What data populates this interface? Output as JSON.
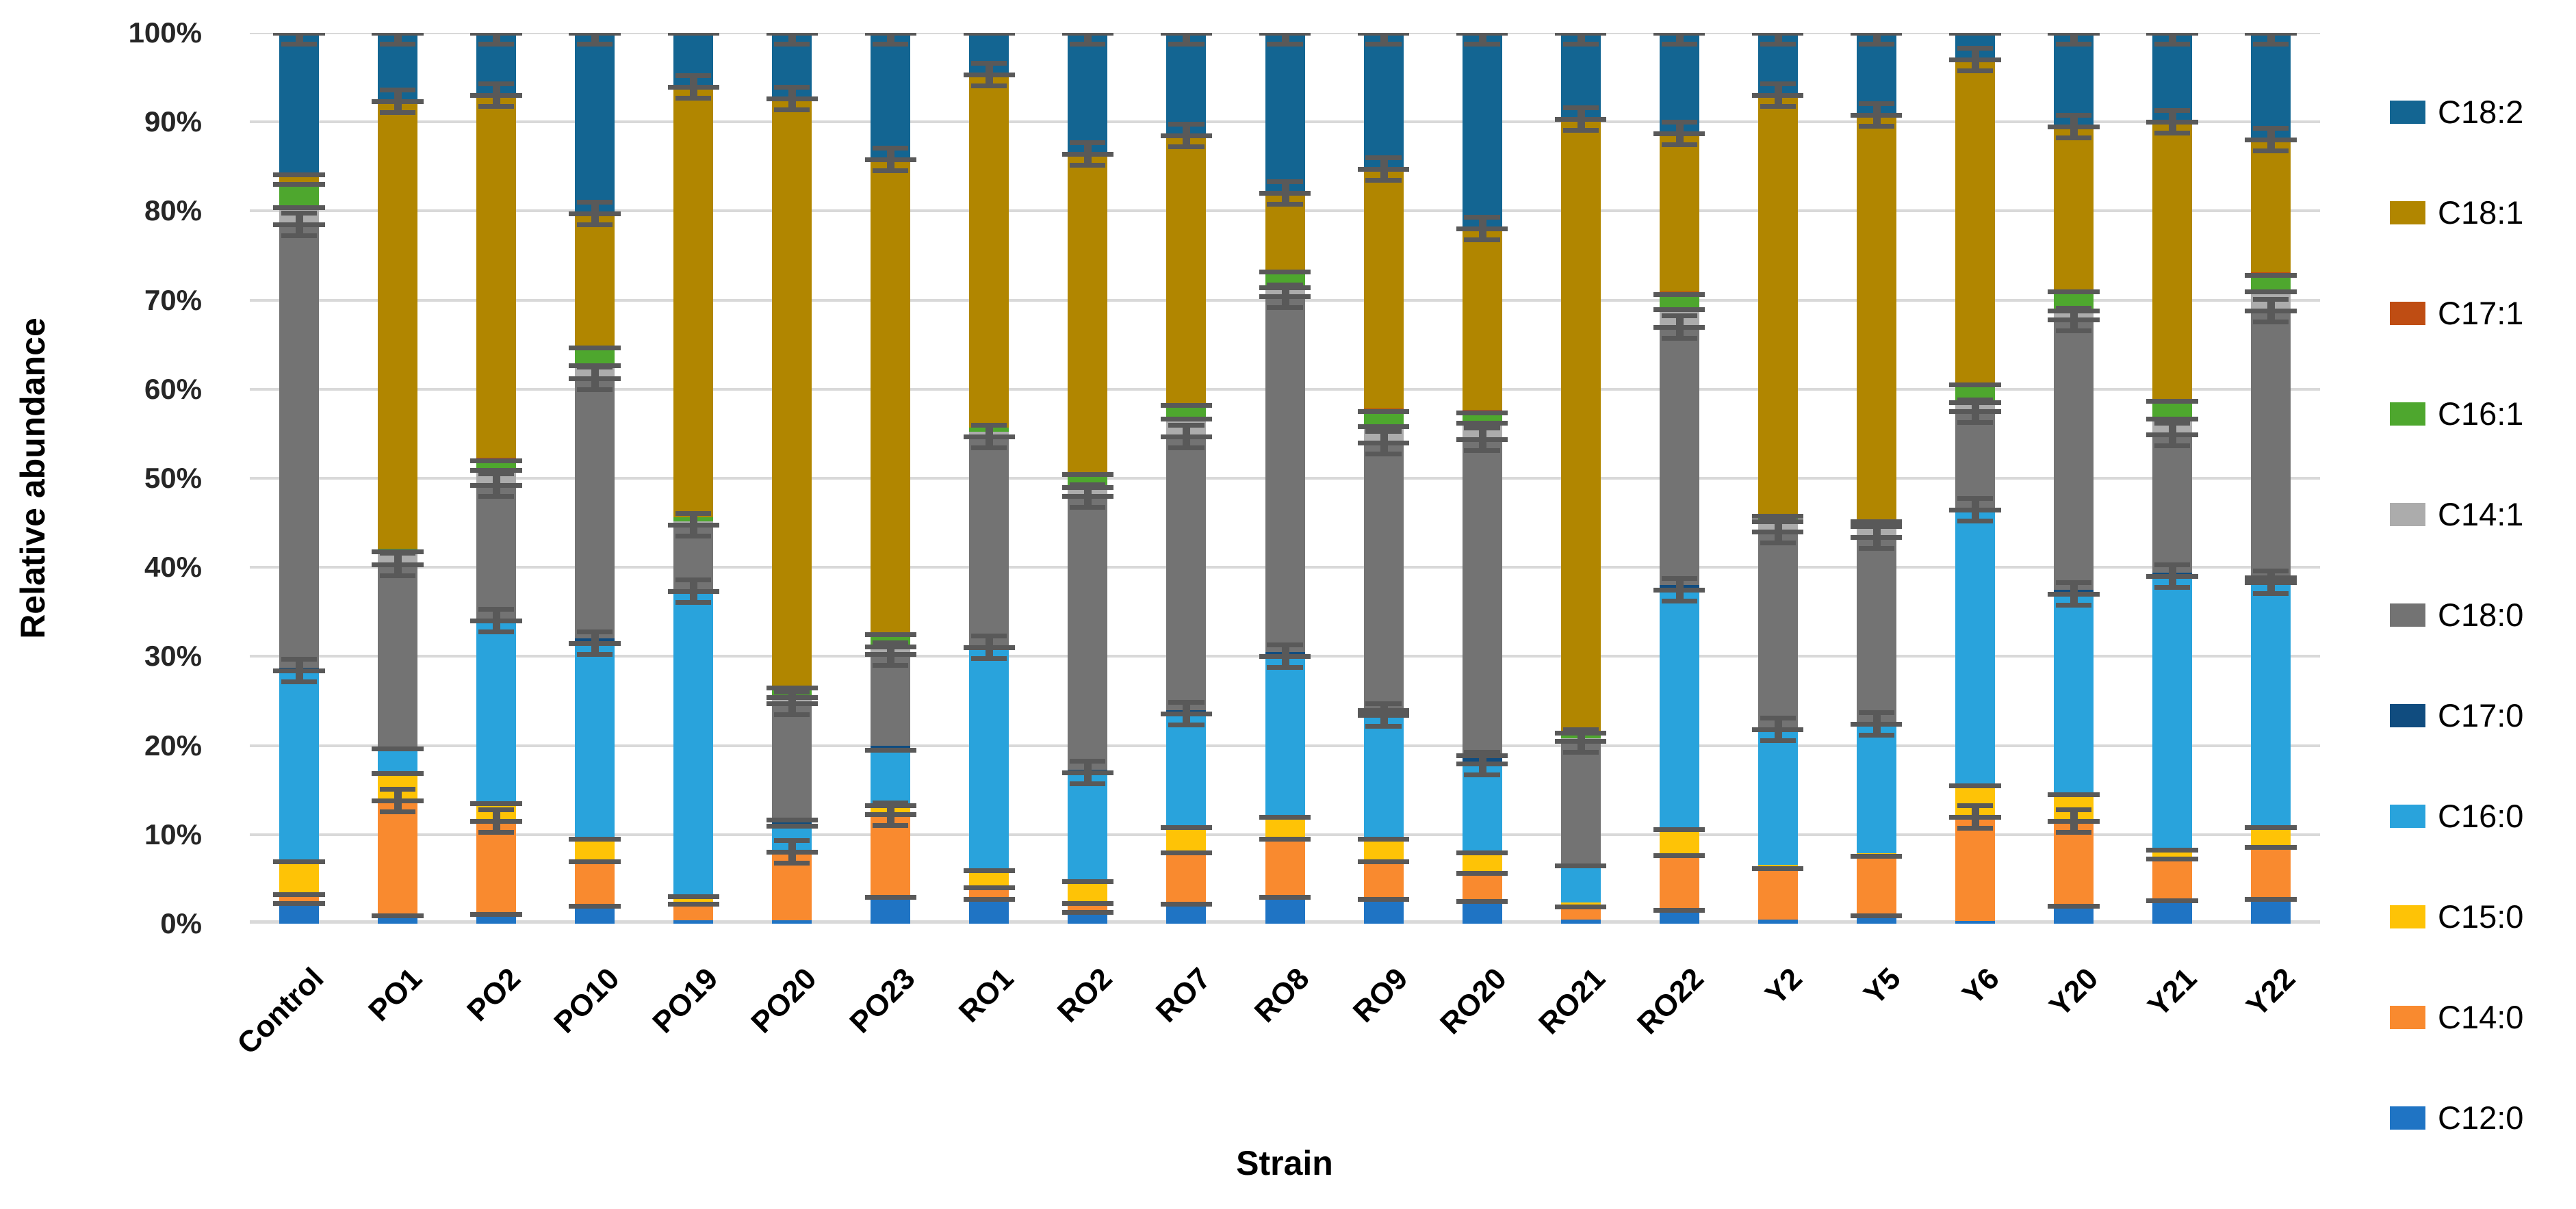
{
  "chart_data": {
    "type": "bar",
    "stacked": true,
    "title": "",
    "xlabel": "Strain",
    "ylabel": "Relative abundance",
    "ylim": [
      0,
      100
    ],
    "grid": true,
    "legend_position": "right",
    "y_ticks": [
      "0%",
      "10%",
      "20%",
      "30%",
      "40%",
      "50%",
      "60%",
      "70%",
      "80%",
      "90%",
      "100%"
    ],
    "categories": [
      "Control",
      "PO1",
      "PO2",
      "PO10",
      "PO19",
      "PO20",
      "PO23",
      "RO1",
      "RO2",
      "RO7",
      "RO8",
      "RO9",
      "RO20",
      "RO21",
      "RO22",
      "Y2",
      "Y5",
      "Y6",
      "Y20",
      "Y21",
      "Y22"
    ],
    "series": [
      {
        "name": "C12:0",
        "color": "#1F74C4",
        "values": [
          2.3,
          0.9,
          1.1,
          2.0,
          0.4,
          0.4,
          3.0,
          2.8,
          1.3,
          2.2,
          3.0,
          2.8,
          2.5,
          0.5,
          1.5,
          0.5,
          0.9,
          0.3,
          2.0,
          2.6,
          2.8
        ]
      },
      {
        "name": "C14:0",
        "color": "#F98A2F",
        "values": [
          1.0,
          12.9,
          10.4,
          5.0,
          1.8,
          7.7,
          9.3,
          1.3,
          1.0,
          5.8,
          6.5,
          4.2,
          3.2,
          1.4,
          6.2,
          5.7,
          6.7,
          11.7,
          9.5,
          4.7,
          5.8
        ]
      },
      {
        "name": "C15:0",
        "color": "#FEC306",
        "values": [
          3.7,
          3.1,
          2.0,
          2.5,
          0.9,
          0.2,
          1.0,
          1.9,
          2.5,
          2.8,
          2.5,
          2.5,
          2.3,
          0.5,
          2.9,
          0.4,
          0.3,
          3.5,
          3.0,
          1.0,
          2.2
        ]
      },
      {
        "name": "C16:0",
        "color": "#29A3DC",
        "values": [
          21.4,
          2.8,
          20.5,
          22.0,
          34.2,
          2.7,
          6.2,
          25.0,
          12.2,
          12.8,
          18.0,
          13.9,
          10.0,
          4.1,
          26.9,
          15.2,
          14.5,
          31.0,
          22.5,
          30.7,
          27.5
        ]
      },
      {
        "name": "C17:0",
        "color": "#104C7F",
        "values": [
          0.3,
          0.0,
          0.0,
          0.5,
          0.0,
          0.7,
          0.5,
          0.0,
          0.3,
          0.4,
          0.5,
          0.6,
          0.9,
          0.0,
          0.5,
          0.0,
          0.0,
          0.0,
          0.5,
          0.4,
          0.6
        ]
      },
      {
        "name": "C18:0",
        "color": "#737373",
        "values": [
          49.8,
          20.6,
          15.2,
          29.2,
          7.5,
          13.0,
          10.3,
          23.7,
          30.7,
          30.7,
          39.9,
          30.0,
          35.5,
          14.0,
          29.0,
          22.2,
          21.0,
          11.0,
          30.3,
          15.5,
          29.9
        ]
      },
      {
        "name": "C14:1",
        "color": "#ACACAC",
        "values": [
          1.9,
          1.5,
          1.7,
          1.5,
          0.4,
          0.7,
          0.8,
          0.5,
          1.0,
          2.0,
          1.0,
          1.8,
          1.8,
          0.3,
          2.0,
          1.2,
          1.2,
          1.0,
          1.0,
          1.8,
          2.2
        ]
      },
      {
        "name": "C16:1",
        "color": "#4EA72E",
        "values": [
          2.6,
          0.3,
          1.1,
          2.0,
          0.4,
          1.1,
          1.4,
          0.5,
          1.5,
          1.5,
          1.8,
          1.7,
          1.2,
          0.6,
          1.7,
          0.6,
          0.6,
          2.0,
          2.2,
          2.0,
          1.8
        ]
      },
      {
        "name": "C17:1",
        "color": "#BF4D13",
        "values": [
          0.0,
          0.0,
          0.3,
          0.0,
          0.0,
          0.0,
          0.0,
          0.0,
          0.0,
          0.0,
          0.0,
          0.3,
          0.3,
          0.0,
          0.3,
          0.0,
          0.0,
          0.0,
          0.2,
          0.2,
          0.3
        ]
      },
      {
        "name": "C18:1",
        "color": "#B18600",
        "values": [
          1.1,
          50.2,
          40.7,
          15.0,
          48.3,
          66.1,
          53.3,
          39.6,
          35.9,
          30.3,
          8.8,
          26.9,
          20.3,
          68.9,
          17.7,
          47.2,
          45.6,
          36.5,
          18.3,
          31.1,
          14.9
        ]
      },
      {
        "name": "C18:2",
        "color": "#136592",
        "values": [
          15.9,
          7.7,
          7.0,
          20.3,
          6.1,
          7.4,
          14.2,
          4.7,
          13.6,
          11.5,
          18.0,
          15.3,
          22.0,
          9.7,
          11.3,
          7.0,
          9.2,
          3.0,
          10.5,
          10.0,
          12.0
        ]
      }
    ],
    "legend_top_to_bottom": [
      "C18:2",
      "C18:1",
      "C17:1",
      "C16:1",
      "C14:1",
      "C18:0",
      "C17:0",
      "C16:0",
      "C15:0",
      "C14:0",
      "C12:0"
    ],
    "colors": {
      "gridline": "#D9D9D9",
      "error_bar": "#595959",
      "tick_text": "#262626"
    }
  }
}
